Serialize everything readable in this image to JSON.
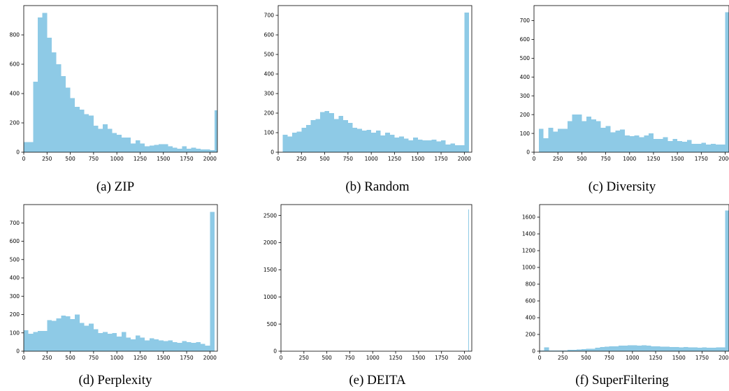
{
  "bar_color": "#8ecae6",
  "chart_data": [
    {
      "type": "bar",
      "caption": "(a) ZIP",
      "xlim": [
        0,
        2080
      ],
      "ylim": [
        0,
        1000
      ],
      "xticks": [
        0,
        250,
        500,
        750,
        1000,
        1250,
        1500,
        1750,
        2000
      ],
      "yticks": [
        0,
        200,
        400,
        600,
        800
      ],
      "bin_start": 0,
      "bin_width": 50,
      "values": [
        70,
        70,
        480,
        920,
        950,
        780,
        680,
        600,
        520,
        440,
        370,
        310,
        290,
        260,
        250,
        180,
        160,
        190,
        160,
        130,
        120,
        100,
        100,
        60,
        80,
        60,
        40,
        45,
        50,
        55,
        55,
        40,
        30,
        25,
        40,
        25,
        30,
        25,
        20,
        20,
        15,
        285
      ]
    },
    {
      "type": "bar",
      "caption": "(b) Random",
      "xlim": [
        0,
        2080
      ],
      "ylim": [
        0,
        750
      ],
      "xticks": [
        0,
        250,
        500,
        750,
        1000,
        1250,
        1500,
        1750,
        2000
      ],
      "yticks": [
        0,
        100,
        200,
        300,
        400,
        500,
        600,
        700
      ],
      "bin_start": 50,
      "bin_width": 50,
      "values": [
        90,
        80,
        100,
        105,
        125,
        140,
        165,
        170,
        205,
        210,
        200,
        170,
        185,
        165,
        150,
        125,
        120,
        110,
        115,
        100,
        110,
        85,
        100,
        90,
        75,
        80,
        70,
        60,
        75,
        65,
        60,
        60,
        65,
        55,
        60,
        40,
        45,
        35,
        35,
        715
      ]
    },
    {
      "type": "bar",
      "caption": "(c) Diversity",
      "xlim": [
        0,
        2040
      ],
      "ylim": [
        0,
        780
      ],
      "xticks": [
        0,
        250,
        500,
        750,
        1000,
        1250,
        1500,
        1750,
        2000
      ],
      "yticks": [
        0,
        100,
        200,
        300,
        400,
        500,
        600,
        700
      ],
      "bin_start": 50,
      "bin_width": 50,
      "values": [
        125,
        75,
        130,
        110,
        125,
        125,
        165,
        200,
        200,
        165,
        190,
        175,
        165,
        130,
        140,
        105,
        115,
        120,
        90,
        85,
        90,
        80,
        90,
        100,
        70,
        70,
        80,
        60,
        70,
        60,
        55,
        65,
        45,
        45,
        50,
        40,
        45,
        40,
        40,
        745
      ]
    },
    {
      "type": "bar",
      "caption": "(d) Perplexity",
      "xlim": [
        0,
        2080
      ],
      "ylim": [
        0,
        800
      ],
      "xticks": [
        0,
        250,
        500,
        750,
        1000,
        1250,
        1500,
        1750,
        2000
      ],
      "yticks": [
        0,
        100,
        200,
        300,
        400,
        500,
        600,
        700
      ],
      "bin_start": 0,
      "bin_width": 50,
      "values": [
        115,
        95,
        105,
        110,
        110,
        170,
        165,
        180,
        195,
        190,
        175,
        200,
        155,
        140,
        150,
        120,
        100,
        105,
        95,
        100,
        80,
        105,
        75,
        65,
        85,
        75,
        60,
        70,
        65,
        60,
        55,
        60,
        50,
        45,
        55,
        50,
        45,
        50,
        40,
        30,
        760
      ]
    },
    {
      "type": "bar",
      "caption": "(e) DEITA",
      "xlim": [
        0,
        2080
      ],
      "ylim": [
        0,
        2700
      ],
      "xticks": [
        0,
        250,
        500,
        750,
        1000,
        1250,
        1500,
        1750,
        2000
      ],
      "yticks": [
        0,
        500,
        1000,
        1500,
        2000,
        2500
      ],
      "bin_start": 2040,
      "bin_width": 10,
      "values": [
        2610
      ]
    },
    {
      "type": "bar",
      "caption": "(f) SuperFiltering",
      "xlim": [
        0,
        2040
      ],
      "ylim": [
        0,
        1750
      ],
      "xticks": [
        0,
        250,
        500,
        750,
        1000,
        1250,
        1500,
        1750,
        2000
      ],
      "yticks": [
        0,
        200,
        400,
        600,
        800,
        1000,
        1200,
        1400,
        1600
      ],
      "bin_start": 0,
      "bin_width": 50,
      "values": [
        10,
        45,
        10,
        10,
        10,
        10,
        15,
        15,
        20,
        25,
        30,
        30,
        40,
        50,
        55,
        60,
        60,
        65,
        65,
        70,
        70,
        65,
        70,
        65,
        60,
        60,
        55,
        55,
        50,
        50,
        45,
        50,
        45,
        45,
        40,
        45,
        40,
        40,
        45,
        45,
        1680
      ]
    }
  ]
}
